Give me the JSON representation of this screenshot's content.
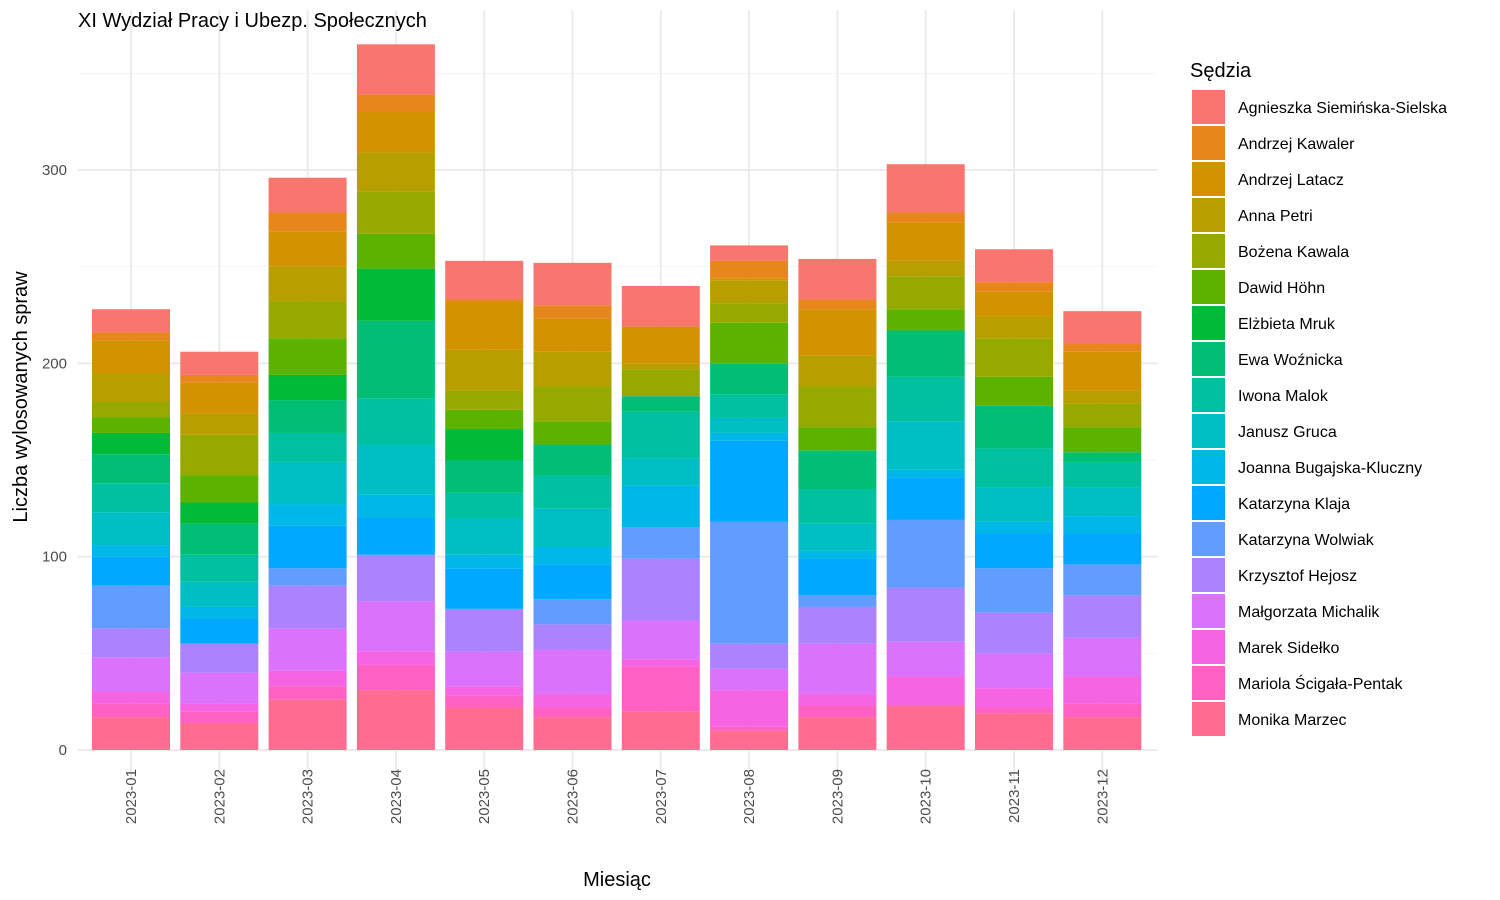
{
  "chart_data": {
    "type": "bar",
    "stacked": true,
    "title": "XI Wydział Pracy i Ubezp. Społecznych",
    "xlabel": "Miesiąc",
    "ylabel": "Liczba wylosowanych spraw",
    "ylim": [
      0,
      370
    ],
    "yticks": [
      0,
      100,
      200,
      300
    ],
    "grid": true,
    "legend_title": "Sędzia",
    "legend_position": "right",
    "categories": [
      "2023-01",
      "2023-02",
      "2023-03",
      "2023-04",
      "2023-05",
      "2023-06",
      "2023-07",
      "2023-08",
      "2023-09",
      "2023-10",
      "2023-11",
      "2023-12"
    ],
    "series": [
      {
        "name": "Agnieszka Siemińska-Sielska",
        "color": "#F8766D",
        "values": [
          12,
          12,
          18,
          26,
          20,
          22,
          21,
          8,
          21,
          25,
          17,
          17
        ]
      },
      {
        "name": "Andrzej Kawaler",
        "color": "#E7861B",
        "values": [
          4,
          4,
          10,
          9,
          1,
          7,
          0,
          9,
          5,
          5,
          5,
          4
        ]
      },
      {
        "name": "Andrzej Latacz",
        "color": "#D39200",
        "values": [
          17,
          16,
          18,
          21,
          25,
          17,
          19,
          1,
          24,
          20,
          13,
          20
        ]
      },
      {
        "name": "Anna Petri",
        "color": "#B79F00",
        "values": [
          15,
          11,
          18,
          20,
          21,
          18,
          3,
          12,
          16,
          8,
          11,
          7
        ]
      },
      {
        "name": "Bożena Kawala",
        "color": "#95A900",
        "values": [
          8,
          21,
          19,
          22,
          10,
          18,
          14,
          10,
          21,
          17,
          20,
          12
        ]
      },
      {
        "name": "Dawid Höhn",
        "color": "#5BB300",
        "values": [
          8,
          14,
          19,
          18,
          10,
          12,
          0,
          21,
          12,
          11,
          15,
          13
        ]
      },
      {
        "name": "Elżbieta Mruk",
        "color": "#00BA38",
        "values": [
          11,
          11,
          13,
          27,
          16,
          0,
          0,
          0,
          0,
          0,
          0,
          0
        ]
      },
      {
        "name": "Ewa Woźnicka",
        "color": "#00BF74",
        "values": [
          15,
          16,
          17,
          40,
          17,
          16,
          8,
          16,
          20,
          24,
          22,
          5
        ]
      },
      {
        "name": "Iwona Malok",
        "color": "#00C19F",
        "values": [
          15,
          14,
          15,
          24,
          13,
          17,
          24,
          12,
          18,
          23,
          20,
          13
        ]
      },
      {
        "name": "Janusz Gruca",
        "color": "#00BFC4",
        "values": [
          17,
          13,
          22,
          26,
          19,
          20,
          14,
          8,
          14,
          25,
          18,
          15
        ]
      },
      {
        "name": "Joanna Bugajska-Kluczny",
        "color": "#00B8E7",
        "values": [
          6,
          6,
          11,
          12,
          7,
          9,
          22,
          4,
          4,
          4,
          6,
          9
        ]
      },
      {
        "name": "Katarzyna Klaja",
        "color": "#00A9FF",
        "values": [
          15,
          13,
          22,
          19,
          21,
          18,
          0,
          42,
          19,
          22,
          18,
          16
        ]
      },
      {
        "name": "Katarzyna Wolwiak",
        "color": "#619CFF",
        "values": [
          22,
          0,
          9,
          0,
          0,
          13,
          16,
          63,
          6,
          35,
          23,
          16
        ]
      },
      {
        "name": "Krzysztof Hejosz",
        "color": "#AB82FF",
        "values": [
          15,
          15,
          22,
          24,
          22,
          13,
          32,
          13,
          19,
          28,
          21,
          22
        ]
      },
      {
        "name": "Małgorzata Michalik",
        "color": "#DB72FB",
        "values": [
          18,
          16,
          22,
          26,
          18,
          23,
          20,
          11,
          26,
          18,
          18,
          20
        ]
      },
      {
        "name": "Marek Sidełko",
        "color": "#F564E3",
        "values": [
          6,
          4,
          8,
          7,
          5,
          7,
          4,
          19,
          6,
          15,
          10,
          14
        ]
      },
      {
        "name": "Mariola Ścigała-Pentak",
        "color": "#FF61C3",
        "values": [
          7,
          6,
          7,
          13,
          6,
          5,
          23,
          2,
          6,
          0,
          3,
          7
        ]
      },
      {
        "name": "Monika Marzec",
        "color": "#FF6C91",
        "values": [
          17,
          14,
          26,
          31,
          22,
          17,
          20,
          10,
          17,
          23,
          19,
          17
        ]
      }
    ]
  }
}
